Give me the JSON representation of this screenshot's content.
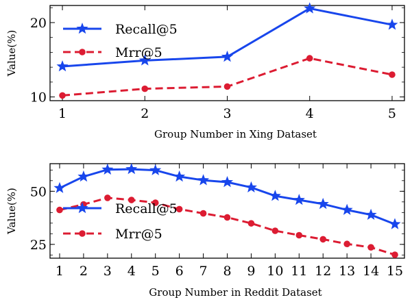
{
  "chart_data": [
    {
      "type": "line",
      "xlabel": "Group Number in Xing Dataset",
      "ylabel": "Value(%)",
      "x": [
        1,
        2,
        3,
        4,
        5
      ],
      "xlim": [
        0.85,
        5.15
      ],
      "ylim": [
        9.5,
        22.3
      ],
      "yticks": [
        10,
        20
      ],
      "series": [
        {
          "name": "Recall@5",
          "values": [
            14.1,
            14.9,
            15.4,
            21.9,
            19.7
          ],
          "color": "#1846ec",
          "linestyle": "solid",
          "marker": "star"
        },
        {
          "name": "Mrr@5",
          "values": [
            10.2,
            11.1,
            11.4,
            15.2,
            13.0
          ],
          "color": "#dc1c32",
          "linestyle": "dashed",
          "marker": "circle"
        }
      ],
      "legend": "upper-left",
      "grid": false
    },
    {
      "type": "line",
      "xlabel": "Group Number in Reddit Dataset",
      "ylabel": "Value(%)",
      "x": [
        1,
        2,
        3,
        4,
        5,
        6,
        7,
        8,
        9,
        10,
        11,
        12,
        13,
        14,
        15
      ],
      "xlim": [
        0.6,
        15.4
      ],
      "ylim": [
        18.5,
        63
      ],
      "yticks": [
        25,
        50
      ],
      "series": [
        {
          "name": "Recall@5",
          "values": [
            51.5,
            56.9,
            60.2,
            60.4,
            59.9,
            56.9,
            55.2,
            54.3,
            51.8,
            47.8,
            45.9,
            44.0,
            41.2,
            38.9,
            34.5
          ],
          "color": "#1846ec",
          "linestyle": "solid",
          "marker": "star"
        },
        {
          "name": "Mrr@5",
          "values": [
            41.2,
            43.8,
            46.9,
            45.9,
            44.6,
            41.6,
            39.6,
            37.7,
            34.9,
            31.4,
            29.3,
            27.4,
            25.2,
            23.6,
            20.1
          ],
          "color": "#dc1c32",
          "linestyle": "dashed",
          "marker": "circle"
        }
      ],
      "legend": "center-left",
      "grid": false
    }
  ]
}
